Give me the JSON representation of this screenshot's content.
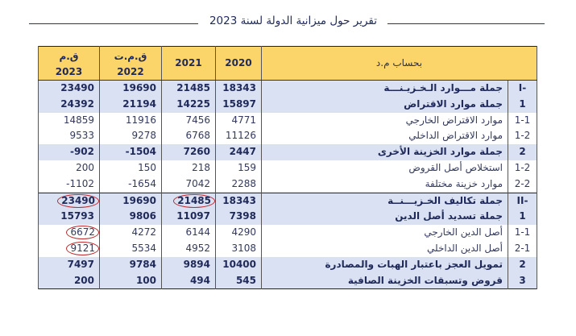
{
  "header": {
    "title": "تقرير حول ميزانية الدولة لسنة 2023"
  },
  "table": {
    "columns": {
      "col_2023_line1": "ق.م",
      "col_2023_line2": "2023",
      "col_2022_line1": "ق.م.ت",
      "col_2022_line2": "2022",
      "col_2021": "2021",
      "col_2020": "2020",
      "label_header": "بحساب م.د"
    },
    "rows": [
      {
        "code": "I-",
        "label": "جملة مـــوارد الـخـزيـنـــة",
        "y2023": "23490",
        "y2022": "19690",
        "y2021": "21485",
        "y2020": "18343",
        "style": "hl"
      },
      {
        "code": "1",
        "label": "جملة موارد الاقتراض",
        "y2023": "24392",
        "y2022": "21194",
        "y2021": "14225",
        "y2020": "15897",
        "style": "hl"
      },
      {
        "code": "1-1",
        "label": "موارد الاقتراض الخارجي",
        "y2023": "14859",
        "y2022": "11916",
        "y2021": "7456",
        "y2020": "4771",
        "style": "plain"
      },
      {
        "code": "1-2",
        "label": "موارد الاقتراض الداخلي",
        "y2023": "9533",
        "y2022": "9278",
        "y2021": "6768",
        "y2020": "11126",
        "style": "plain"
      },
      {
        "code": "2",
        "label": "جملة موارد الخزينة الأخرى",
        "y2023": "-902",
        "y2022": "-1504",
        "y2021": "7260",
        "y2020": "2447",
        "style": "hl"
      },
      {
        "code": "1-2",
        "label": "استخلاص أصل القروض",
        "y2023": "200",
        "y2022": "150",
        "y2021": "218",
        "y2020": "159",
        "style": "plain"
      },
      {
        "code": "2-2",
        "label": "موارد خزينة مختلفة",
        "y2023": "-1102",
        "y2022": "-1654",
        "y2021": "7042",
        "y2020": "2288",
        "style": "plain"
      },
      {
        "code": "II-",
        "label": "جملة تكاليف الخـزيـــنــة",
        "y2023": "23490",
        "y2022": "19690",
        "y2021": "21485",
        "y2020": "18343",
        "style": "hl",
        "circled": [
          "y2023",
          "y2021"
        ]
      },
      {
        "code": "1",
        "label": "جملة تسديد أصل الدين",
        "y2023": "15793",
        "y2022": "9806",
        "y2021": "11097",
        "y2020": "7398",
        "style": "hl"
      },
      {
        "code": "1-1",
        "label": "أصل الدين الخارجي",
        "y2023": "6672",
        "y2022": "4272",
        "y2021": "6144",
        "y2020": "4290",
        "style": "plain",
        "circled": [
          "y2023"
        ]
      },
      {
        "code": "2-1",
        "label": "أصل الدين الداخلي",
        "y2023": "9121",
        "y2022": "5534",
        "y2021": "4952",
        "y2020": "3108",
        "style": "plain",
        "circled": [
          "y2023"
        ]
      },
      {
        "code": "2",
        "label": "تمويل العجز باعتبار الهبات والمصادرة",
        "y2023": "7497",
        "y2022": "9784",
        "y2021": "9894",
        "y2020": "10400",
        "style": "hl"
      },
      {
        "code": "3",
        "label": "قروض وتسبقات الخزينة الصافية",
        "y2023": "200",
        "y2022": "100",
        "y2021": "494",
        "y2020": "545",
        "style": "hl"
      }
    ]
  },
  "colors": {
    "header_bg": "#fcd56a",
    "highlight_row_bg": "#d9e1f2",
    "text_navy": "#1f2a5a",
    "circle_annotation": "#c0282d"
  }
}
